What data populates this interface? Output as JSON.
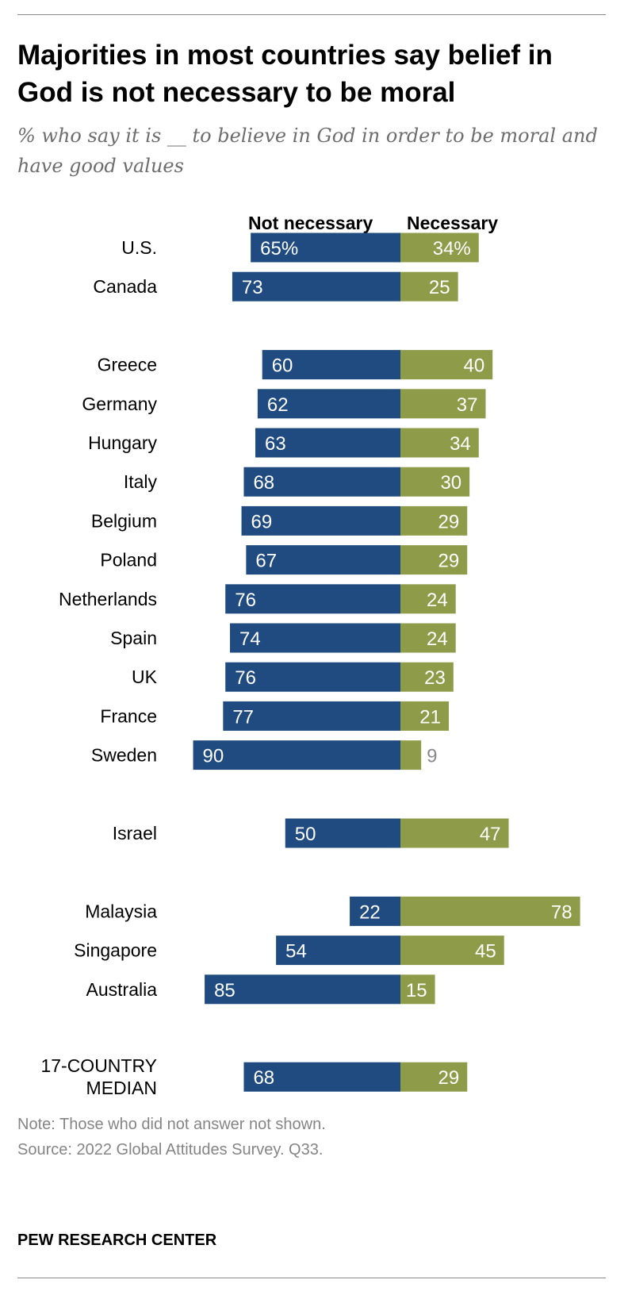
{
  "chart_data": {
    "type": "bar",
    "title": "Majorities in most countries say belief in God is not necessary to be moral",
    "subtitle": "% who say it is __ to believe in God in order to be moral and have good values",
    "series": [
      {
        "name": "Not necessary",
        "color": "#1f4b80",
        "values": [
          65,
          73,
          60,
          62,
          63,
          68,
          69,
          67,
          76,
          74,
          76,
          77,
          90,
          50,
          22,
          54,
          85,
          68
        ],
        "labels": [
          "65%",
          "73",
          "60",
          "62",
          "63",
          "68",
          "69",
          "67",
          "76",
          "74",
          "76",
          "77",
          "90",
          "50",
          "22",
          "54",
          "85",
          "68"
        ]
      },
      {
        "name": "Necessary",
        "color": "#8e9c4a",
        "values": [
          34,
          25,
          40,
          37,
          34,
          30,
          29,
          29,
          24,
          24,
          23,
          21,
          9,
          47,
          78,
          45,
          15,
          29
        ],
        "labels": [
          "34%",
          "25",
          "40",
          "37",
          "34",
          "30",
          "29",
          "29",
          "24",
          "24",
          "23",
          "21",
          "9",
          "47",
          "78",
          "45",
          "15",
          "29"
        ]
      }
    ],
    "categories": [
      [
        "U.S."
      ],
      [
        "Canada"
      ],
      [
        "Greece"
      ],
      [
        "Germany"
      ],
      [
        "Hungary"
      ],
      [
        "Italy"
      ],
      [
        "Belgium"
      ],
      [
        "Poland"
      ],
      [
        "Netherlands"
      ],
      [
        "Spain"
      ],
      [
        "UK"
      ],
      [
        "France"
      ],
      [
        "Sweden"
      ],
      [
        "Israel"
      ],
      [
        "Malaysia"
      ],
      [
        "Singapore"
      ],
      [
        "Australia"
      ],
      [
        "17-COUNTRY",
        "MEDIAN"
      ]
    ],
    "groups": [
      2,
      11,
      1,
      3,
      1
    ],
    "xlim": [
      -100,
      100
    ]
  },
  "note": "Note: Those who did not answer not shown.",
  "source": "Source: 2022 Global Attitudes Survey. Q33.",
  "brand": "PEW RESEARCH CENTER"
}
